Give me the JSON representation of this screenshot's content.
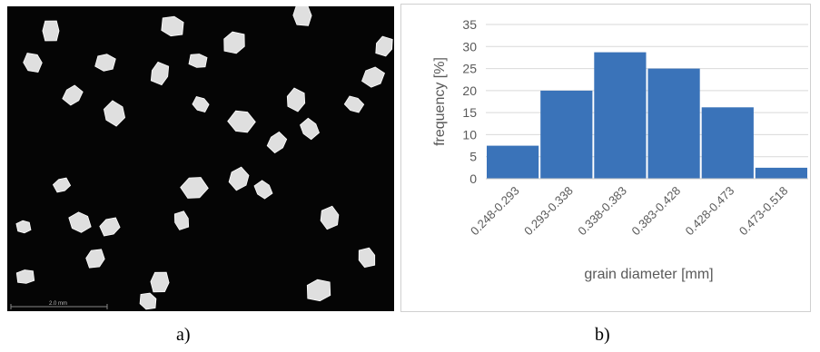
{
  "panels": {
    "a_label": "a)",
    "b_label": "b)"
  },
  "photo": {
    "scale_bar_text": "2.0 mm",
    "background_color": "#050505",
    "grain_color": "#f2f2f2"
  },
  "chart_data": {
    "type": "bar",
    "categories": [
      "0.248-0.293",
      "0.293-0.338",
      "0.338-0.383",
      "0.383-0.428",
      "0.428-0.473",
      "0.473-0.518"
    ],
    "values": [
      7.5,
      20,
      28.7,
      25,
      16.2,
      2.5
    ],
    "xlabel": "grain diameter [mm]",
    "ylabel": "frequency [%]",
    "ylim": [
      0,
      35
    ],
    "yticks": [
      0,
      5,
      10,
      15,
      20,
      25,
      30,
      35
    ],
    "grid": true,
    "bar_color": "#3a73b9",
    "legend": "none"
  }
}
